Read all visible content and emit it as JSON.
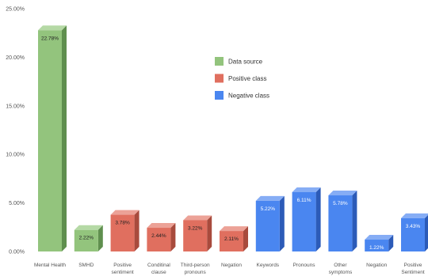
{
  "chart_data": {
    "type": "bar",
    "title": "",
    "xlabel": "",
    "ylabel": "",
    "ylim": [
      0,
      25
    ],
    "y_ticks": [
      "0.00%",
      "5.00%",
      "10.00%",
      "15.00%",
      "20.00%",
      "25.00%"
    ],
    "y_tick_values": [
      0,
      5,
      10,
      15,
      20,
      25
    ],
    "categories": [
      [
        "Mental Health"
      ],
      [
        "SMHD"
      ],
      [
        "Positive",
        "sentiment"
      ],
      [
        "Conditinal",
        "clause"
      ],
      [
        "Third-person",
        "pronouns"
      ],
      [
        "Negation"
      ],
      [
        "Keywords"
      ],
      [
        "Pronouns"
      ],
      [
        "Other",
        "symptoms"
      ],
      [
        "Negation"
      ],
      [
        "Positive",
        "Sentiment"
      ]
    ],
    "values": [
      22.78,
      2.22,
      3.78,
      2.44,
      3.22,
      2.11,
      5.22,
      6.11,
      5.78,
      1.22,
      3.43
    ],
    "value_labels": [
      "22.78%",
      "2.22%",
      "3.78%",
      "2.44%",
      "3.22%",
      "2.11%",
      "5.22%",
      "6.11%",
      "5.78%",
      "1.22%",
      "3.43%"
    ],
    "groups": [
      0,
      0,
      1,
      1,
      1,
      1,
      2,
      2,
      2,
      2,
      2
    ],
    "series": [
      {
        "name": "Data source",
        "color": "#93c47d",
        "top": "#b5d9a5",
        "side": "#5f8f4e",
        "label_color": "#222222"
      },
      {
        "name": "Positive class",
        "color": "#e06f5f",
        "top": "#eca297",
        "side": "#a84b3d",
        "label_color": "#222222"
      },
      {
        "name": "Negative class",
        "color": "#4a86f0",
        "top": "#86adf5",
        "side": "#2c5bb8",
        "label_color": "#ffffff"
      }
    ],
    "legend_position": "top-right",
    "grid": false
  }
}
